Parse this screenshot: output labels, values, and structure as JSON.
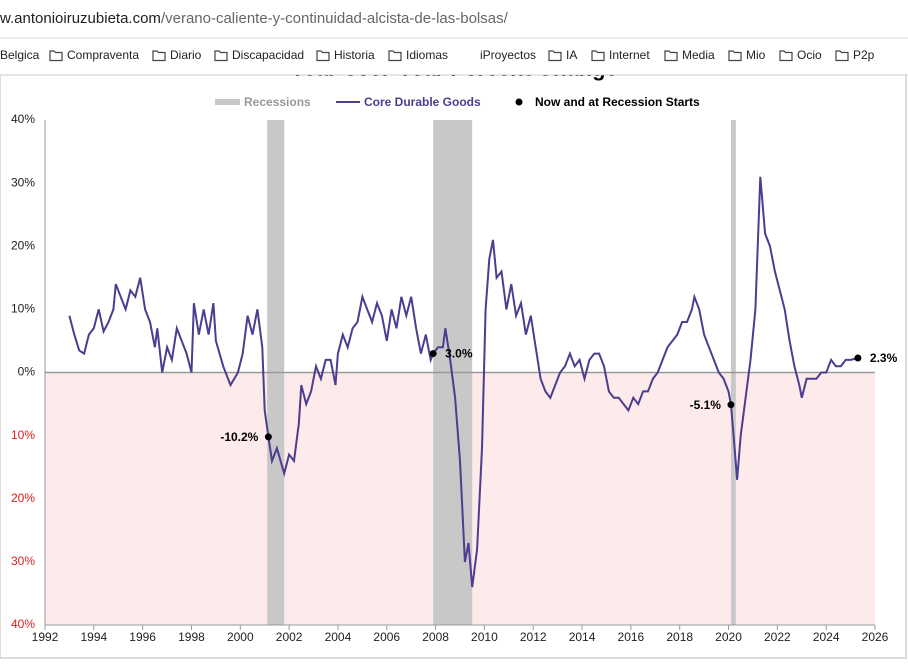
{
  "browser": {
    "url_domain": "w.antonioiruzubieta.com",
    "url_path": "/verano-caliente-y-continuidad-alcista-de-las-bolsas/",
    "bookmarks": [
      "Belgica",
      "Compraventa",
      "Diario",
      "Discapacidad",
      "Historia",
      "Idiomas",
      "iProyectos",
      "IA",
      "Internet",
      "Media",
      "Mio",
      "Ocio",
      "P2p"
    ]
  },
  "chart_data": {
    "type": "line",
    "title": "Year-over-Year Percent Change",
    "legend": {
      "recessions": "Recessions",
      "points": "Now and at Recession Starts"
    },
    "recession_color": "#c8c8c8",
    "negative_fill": "#fdeaea",
    "point_color": "#000000",
    "negative_tick_color": "#e0201b",
    "recessions": [
      [
        2001.1,
        2001.8
      ],
      [
        2007.9,
        2009.5
      ],
      [
        2020.1,
        2020.3
      ]
    ],
    "xlim": [
      1992,
      2026
    ],
    "xticks": [
      1992,
      1994,
      1996,
      1998,
      2000,
      2002,
      2004,
      2006,
      2008,
      2010,
      2012,
      2014,
      2016,
      2018,
      2020,
      2022,
      2024,
      2026
    ],
    "ylim": [
      -40,
      40
    ],
    "yticks": [
      {
        "value": 40,
        "label": "40%"
      },
      {
        "value": 30,
        "label": "30%"
      },
      {
        "value": 20,
        "label": "20%"
      },
      {
        "value": 10,
        "label": "10%"
      },
      {
        "value": 0,
        "label": "0%"
      },
      {
        "value": -10,
        "label": "10%"
      },
      {
        "value": -20,
        "label": "20%"
      },
      {
        "value": -30,
        "label": "30%"
      },
      {
        "value": -40,
        "label": "40%"
      }
    ],
    "highlights": [
      {
        "x": 2001.15,
        "value": -10.2,
        "label": "-10.2%"
      },
      {
        "x": 2007.9,
        "value": 3.0,
        "label": "3.0%"
      },
      {
        "x": 2020.1,
        "value": -5.1,
        "label": "-5.1%"
      },
      {
        "x": 2025.3,
        "value": 2.3,
        "label": "2.3%"
      }
    ],
    "series": [
      {
        "name": "Core Durable Goods",
        "color": "#4b3d8f",
        "x": [
          1993.0,
          1993.2,
          1993.4,
          1993.6,
          1993.8,
          1994.0,
          1994.2,
          1994.4,
          1994.6,
          1994.8,
          1994.9,
          1995.1,
          1995.3,
          1995.5,
          1995.7,
          1995.9,
          1996.1,
          1996.3,
          1996.5,
          1996.6,
          1996.8,
          1997.0,
          1997.2,
          1997.4,
          1997.6,
          1997.8,
          1998.0,
          1998.1,
          1998.3,
          1998.5,
          1998.7,
          1998.9,
          1999.0,
          1999.3,
          1999.6,
          1999.9,
          2000.1,
          2000.3,
          2000.5,
          2000.7,
          2000.9,
          2001.0,
          2001.15,
          2001.3,
          2001.5,
          2001.8,
          2002.0,
          2002.2,
          2002.4,
          2002.5,
          2002.7,
          2002.9,
          2003.1,
          2003.3,
          2003.5,
          2003.7,
          2003.9,
          2004.0,
          2004.2,
          2004.4,
          2004.6,
          2004.8,
          2005.0,
          2005.2,
          2005.4,
          2005.6,
          2005.8,
          2006.0,
          2006.2,
          2006.4,
          2006.6,
          2006.8,
          2007.0,
          2007.2,
          2007.4,
          2007.6,
          2007.8,
          2007.9,
          2008.1,
          2008.3,
          2008.4,
          2008.6,
          2008.8,
          2009.0,
          2009.2,
          2009.35,
          2009.5,
          2009.7,
          2009.9,
          2010.05,
          2010.2,
          2010.35,
          2010.5,
          2010.7,
          2010.9,
          2011.1,
          2011.3,
          2011.5,
          2011.7,
          2011.9,
          2012.1,
          2012.3,
          2012.5,
          2012.7,
          2012.9,
          2013.1,
          2013.3,
          2013.5,
          2013.7,
          2013.9,
          2014.1,
          2014.3,
          2014.5,
          2014.7,
          2014.9,
          2015.1,
          2015.3,
          2015.5,
          2015.7,
          2015.9,
          2016.1,
          2016.3,
          2016.5,
          2016.7,
          2016.9,
          2017.1,
          2017.3,
          2017.5,
          2017.7,
          2017.9,
          2018.1,
          2018.3,
          2018.5,
          2018.6,
          2018.8,
          2019.0,
          2019.2,
          2019.4,
          2019.6,
          2019.8,
          2020.0,
          2020.1,
          2020.25,
          2020.35,
          2020.5,
          2020.7,
          2020.9,
          2021.1,
          2021.3,
          2021.5,
          2021.7,
          2021.9,
          2022.1,
          2022.3,
          2022.5,
          2022.7,
          2022.9,
          2023.0,
          2023.2,
          2023.4,
          2023.6,
          2023.8,
          2024.0,
          2024.2,
          2024.4,
          2024.6,
          2024.8,
          2025.0,
          2025.3
        ],
        "values": [
          9,
          6,
          3.5,
          3,
          6,
          7,
          10,
          6.5,
          8,
          10,
          14,
          12,
          10,
          13,
          12,
          15,
          10,
          8,
          4,
          7,
          0,
          4,
          2,
          7,
          5,
          3,
          0,
          11,
          6,
          10,
          6,
          11,
          5,
          1,
          -2,
          0,
          3,
          9,
          6,
          10,
          4,
          -6,
          -10.2,
          -14,
          -12,
          -16,
          -13,
          -14,
          -8,
          -2,
          -5,
          -3,
          1,
          -1,
          2,
          2,
          -2,
          3,
          6,
          4,
          7,
          8,
          12,
          10,
          8,
          11,
          9,
          5,
          10,
          7,
          12,
          9,
          12,
          7,
          3,
          6,
          2,
          3,
          4,
          4,
          7,
          2,
          -4,
          -14,
          -30,
          -27,
          -34,
          -28,
          -12,
          10,
          18,
          21,
          15,
          16,
          10,
          14,
          9,
          11,
          6,
          9,
          4,
          -1,
          -3,
          -4,
          -2,
          0,
          1,
          3,
          1,
          2,
          -1,
          2,
          3,
          3,
          1,
          -3,
          -4,
          -4,
          -5,
          -6,
          -4,
          -5,
          -3,
          -3,
          -1,
          0,
          2,
          4,
          5,
          6,
          8,
          8,
          10,
          12,
          10,
          6,
          4,
          2,
          0,
          -1,
          -3,
          -5.1,
          -12,
          -17,
          -10,
          -4,
          2,
          10,
          31,
          22,
          20,
          16,
          13,
          10,
          5,
          1,
          -2,
          -4,
          -1,
          -1,
          -1,
          0,
          0,
          2,
          1,
          1,
          2,
          2,
          2.3
        ]
      }
    ]
  }
}
